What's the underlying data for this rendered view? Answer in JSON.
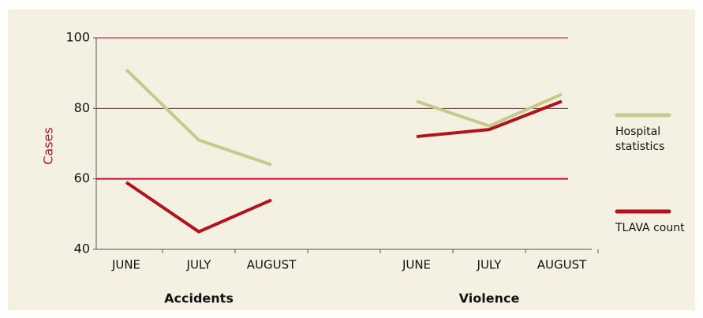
{
  "chart_data": {
    "type": "line",
    "y_label": "Cases",
    "categories": [
      "JUNE",
      "JULY",
      "AUGUST",
      null,
      "JUNE",
      "JULY",
      "AUGUST"
    ],
    "group_labels": [
      "Accidents",
      "Violence"
    ],
    "series": [
      {
        "name": "Hospital statistics",
        "color": "#c6c98c",
        "values": [
          91,
          71,
          64,
          null,
          82,
          75,
          84
        ]
      },
      {
        "name": "TLAVA count",
        "color": "#b3121c",
        "values": [
          59,
          45,
          54,
          null,
          72,
          74,
          82
        ]
      }
    ],
    "ylim": [
      40,
      100
    ],
    "yticks": [
      40,
      60,
      80,
      100
    ],
    "grid": true,
    "grid_color": "#c8102e"
  }
}
